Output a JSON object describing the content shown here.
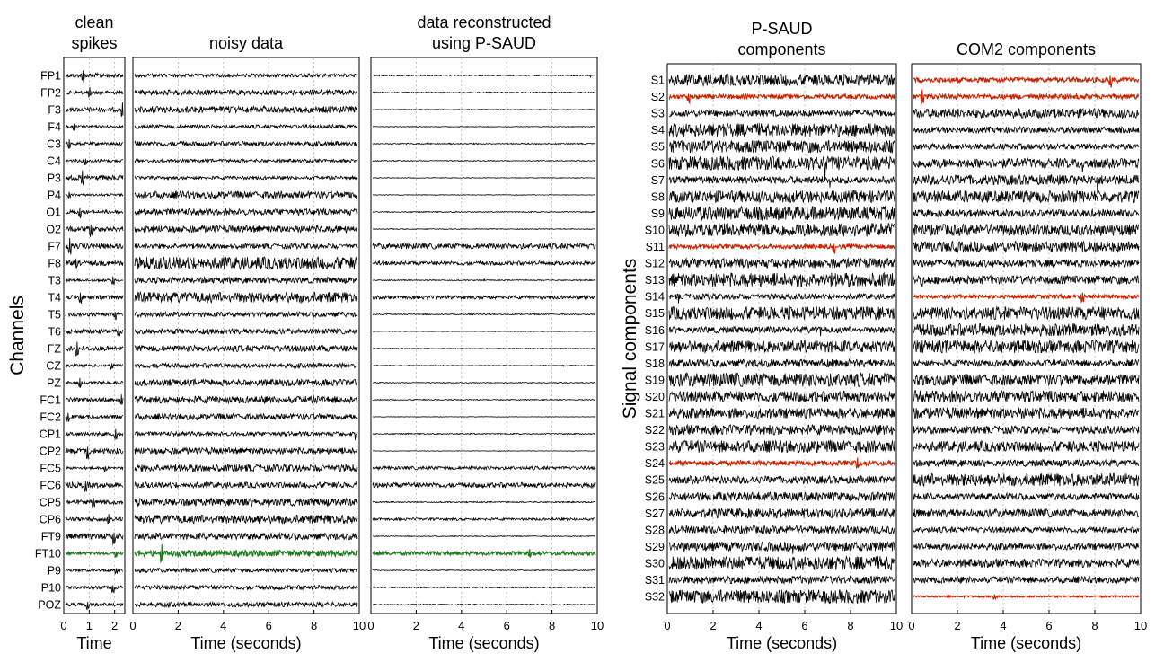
{
  "panels": [
    {
      "id": "clean",
      "title_lines": [
        "clean",
        "spikes"
      ],
      "xlabel": "Time",
      "xlim": [
        0,
        2.4
      ],
      "xticks": [
        0,
        1,
        2
      ],
      "show_rows": true,
      "ylabel": "Channels"
    },
    {
      "id": "noisy",
      "title_lines": [
        "noisy data"
      ],
      "xlabel": "Time (seconds)",
      "xlim": [
        0,
        10
      ],
      "xticks": [
        0,
        2,
        4,
        6,
        8,
        10
      ],
      "show_rows": false
    },
    {
      "id": "recon",
      "title_lines": [
        "data reconstructed",
        "using P-SAUD"
      ],
      "xlabel": "Time (seconds)",
      "xlim": [
        0,
        10
      ],
      "xticks": [
        0,
        2,
        4,
        6,
        8,
        10
      ],
      "show_rows": false
    },
    {
      "id": "psaud",
      "title_lines": [
        "P-SAUD",
        "components"
      ],
      "xlabel": "Time (seconds)",
      "xlim": [
        0,
        10
      ],
      "xticks": [
        0,
        2,
        4,
        6,
        8,
        10
      ],
      "show_rows": true,
      "ylabel": "Signal components"
    },
    {
      "id": "com2",
      "title_lines": [
        "COM2 components"
      ],
      "xlabel": "Time (seconds)",
      "xlim": [
        0,
        10
      ],
      "xticks": [
        0,
        2,
        4,
        6,
        8,
        10
      ],
      "show_rows": false
    }
  ],
  "chart_data": [
    {
      "type": "line",
      "panel": "channels",
      "rows": [
        "FP1",
        "FP2",
        "F3",
        "F4",
        "C3",
        "C4",
        "P3",
        "P4",
        "O1",
        "O2",
        "F7",
        "F8",
        "T3",
        "T4",
        "T5",
        "T6",
        "FZ",
        "CZ",
        "PZ",
        "FC1",
        "FC2",
        "CP1",
        "CP2",
        "FC5",
        "FC6",
        "CP5",
        "CP6",
        "FT9",
        "FT10",
        "P9",
        "P10",
        "POZ"
      ],
      "highlighted_rows": [
        "FT10"
      ],
      "highlight_color": "#1f7a1f",
      "trace_color": "#000000",
      "grid": "vertical dotted"
    },
    {
      "type": "line",
      "panel": "components",
      "rows": [
        "S1",
        "S2",
        "S3",
        "S4",
        "S5",
        "S6",
        "S7",
        "S8",
        "S9",
        "S10",
        "S11",
        "S12",
        "S13",
        "S14",
        "S15",
        "S16",
        "S17",
        "S18",
        "S19",
        "S20",
        "S21",
        "S22",
        "S23",
        "S24",
        "S25",
        "S26",
        "S27",
        "S28",
        "S29",
        "S30",
        "S31",
        "S32"
      ],
      "psaud_highlighted_rows": [
        "S2",
        "S11",
        "S24"
      ],
      "com2_highlighted_rows": [
        "S1",
        "S2",
        "S14",
        "S32"
      ],
      "highlight_color": "#cc2200",
      "trace_color": "#000000",
      "grid": "vertical dotted"
    }
  ]
}
